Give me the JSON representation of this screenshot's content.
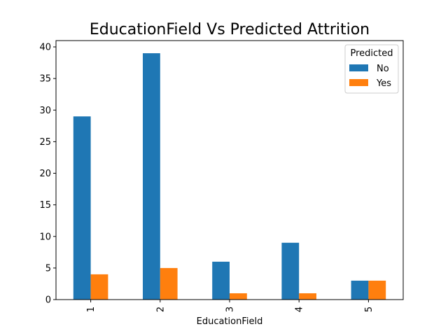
{
  "chart_data": {
    "type": "bar",
    "title": "EducationField Vs Predicted Attrition",
    "xlabel": "EducationField",
    "ylabel": "",
    "categories": [
      "1",
      "2",
      "3",
      "4",
      "5"
    ],
    "series": [
      {
        "name": "No",
        "values": [
          29,
          39,
          6,
          9,
          3
        ],
        "color": "#1f77b4"
      },
      {
        "name": "Yes",
        "values": [
          4,
          5,
          1,
          1,
          3
        ],
        "color": "#ff7f0e"
      }
    ],
    "ylim": [
      0,
      41
    ],
    "yticks": [
      0,
      5,
      10,
      15,
      20,
      25,
      30,
      35,
      40
    ],
    "grid": false,
    "legend": {
      "title": "Predicted",
      "placement": "top-right"
    }
  }
}
